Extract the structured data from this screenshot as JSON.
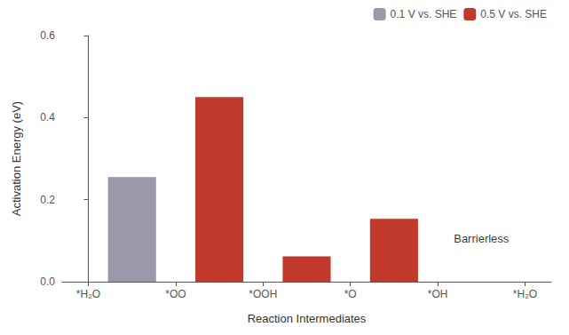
{
  "chart_data": {
    "type": "bar",
    "xlabel": "Reaction Intermediates",
    "ylabel": "Activation Energy (eV)",
    "series": [
      {
        "name": "0.1 V vs. SHE",
        "color": "#9999aa",
        "x": [
          0.5
        ],
        "values": [
          0.255
        ]
      },
      {
        "name": "0.5 V vs. SHE",
        "color": "#c0392b",
        "x": [
          1.5,
          2.5,
          3.5
        ],
        "values": [
          0.45,
          0.062,
          0.153
        ]
      }
    ],
    "xlim": [
      -0.3,
      5.3
    ],
    "xticks": [
      {
        "value": 0,
        "label": "*H₂O"
      },
      {
        "value": 1,
        "label": "*OO"
      },
      {
        "value": 2,
        "label": "*OOH"
      },
      {
        "value": 3,
        "label": "*O"
      },
      {
        "value": 4,
        "label": "*OH"
      },
      {
        "value": 5,
        "label": "*H₂O"
      }
    ],
    "ylim": [
      0,
      0.6
    ],
    "yticks": [
      {
        "value": 0,
        "label": "0.0"
      },
      0.2,
      0.4,
      0.6
    ],
    "annotations": [
      {
        "text": "Barrierless",
        "x": 4.5,
        "y": 0.105
      }
    ],
    "legend": "upper right",
    "grid": false
  }
}
